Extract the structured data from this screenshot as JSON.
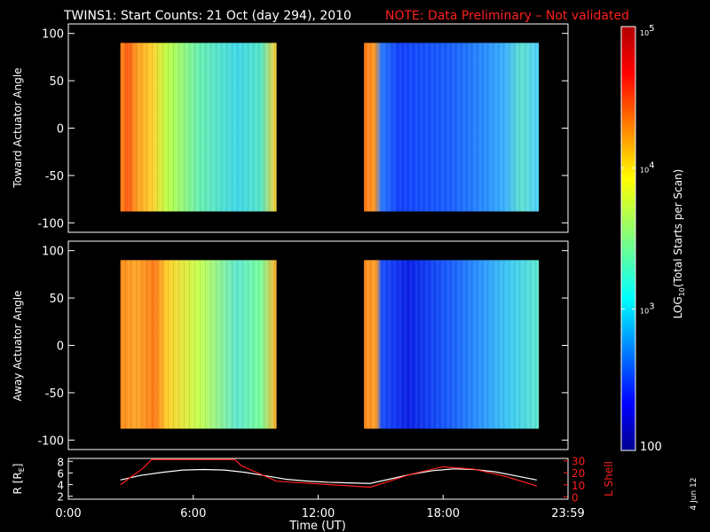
{
  "title": {
    "main": "TWINS1: Start Counts: 21 Oct (day 294), 2010",
    "note": "NOTE: Data Preliminary – Not validated",
    "note_color": "#ff1f1f"
  },
  "chart_data": [
    {
      "type": "heatmap",
      "panel": "toward",
      "ylabel": "Toward Actuator Angle",
      "ylim": [
        -110,
        110
      ],
      "yticks": [
        100,
        50,
        0,
        -50,
        -100
      ],
      "xlim": [
        0,
        24
      ],
      "data_blocks": [
        {
          "x_start": 2.5,
          "x_end": 10.0,
          "y_start": -88,
          "y_end": 90
        },
        {
          "x_start": 14.2,
          "x_end": 22.6,
          "y_start": -88,
          "y_end": 90
        }
      ],
      "colorscale": "jet (log)"
    },
    {
      "type": "heatmap",
      "panel": "away",
      "ylabel": "Away Actuator Angle",
      "ylim": [
        -110,
        110
      ],
      "yticks": [
        100,
        50,
        0,
        -50,
        -100
      ],
      "xlim": [
        0,
        24
      ],
      "data_blocks": [
        {
          "x_start": 2.5,
          "x_end": 10.0,
          "y_start": -88,
          "y_end": 90
        },
        {
          "x_start": 14.2,
          "x_end": 22.6,
          "y_start": -88,
          "y_end": 90
        }
      ],
      "colorscale": "jet (log)"
    },
    {
      "type": "line",
      "panel": "orbit",
      "ylabel_left": "R [R",
      "ylabel_left_sub": "E",
      "ylabel_left_close": "]",
      "ylabel_right": "L Shell",
      "yticks_left": [
        8,
        6,
        4,
        2
      ],
      "ylim_left": [
        1.5,
        8.5
      ],
      "yticks_right": [
        30,
        20,
        10,
        0
      ],
      "ylim_right": [
        -2,
        32
      ],
      "xlabel": "Time (UT)",
      "xlim": [
        0,
        24
      ],
      "xtick_labels": [
        "0:00",
        "6:00",
        "12:00",
        "18:00",
        "23:59"
      ],
      "xtick_values": [
        0,
        6,
        12,
        18,
        24
      ],
      "series": [
        {
          "color": "#ffffff",
          "axis": "left",
          "x": [
            2.5,
            3.5,
            4.5,
            5.5,
            6.5,
            7.5,
            8.5,
            9.5,
            10.5,
            11.5,
            12.5,
            13.5,
            14.5,
            15.5,
            16.5,
            17.5,
            18.5,
            19.5,
            20.5,
            21.5,
            22.5
          ],
          "y": [
            4.8,
            5.6,
            6.1,
            6.5,
            6.6,
            6.5,
            6.1,
            5.5,
            4.9,
            4.6,
            4.4,
            4.3,
            4.2,
            5.0,
            5.8,
            6.4,
            6.7,
            6.6,
            6.2,
            5.5,
            4.8
          ]
        },
        {
          "color": "#ff1f1f",
          "axis": "right",
          "x": [
            2.5,
            3.6,
            4.0,
            8.0,
            8.3,
            10.0,
            14.5,
            16.5,
            18.0,
            19.5,
            21.0,
            22.5
          ],
          "y": [
            10,
            24,
            31,
            31,
            26,
            13,
            8,
            19,
            25,
            23,
            17,
            9
          ]
        }
      ]
    }
  ],
  "colorbar": {
    "label": "LOG",
    "label_sub": "10",
    "label_rest": "(Total Starts per Scan)",
    "ticks": [
      {
        "base": "10",
        "exp": "5",
        "value": 100000
      },
      {
        "base": "10",
        "exp": "4",
        "value": 10000
      },
      {
        "base": "10",
        "exp": "3",
        "value": 1000
      },
      {
        "base": "100",
        "exp": "",
        "value": 100
      }
    ],
    "range": [
      100,
      100000
    ]
  },
  "stamp": "4 Jun 12"
}
